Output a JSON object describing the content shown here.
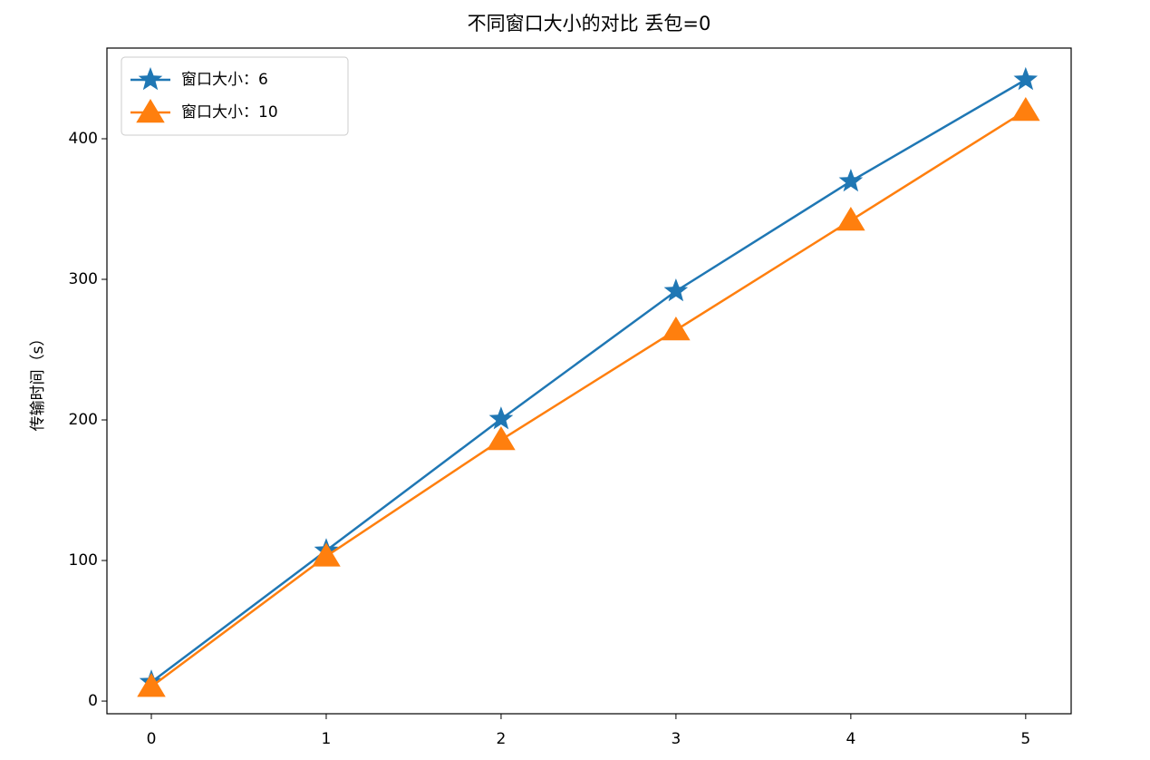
{
  "chart_data": {
    "type": "line",
    "title": "不同窗口大小的对比   丢包=0",
    "ylabel": "传输时间（s）",
    "x": [
      0,
      1,
      2,
      3,
      4,
      5
    ],
    "series": [
      {
        "name": "窗口大小：6",
        "color": "#1f77b4",
        "marker": "star",
        "values": [
          13.5,
          107,
          200.6,
          291.6,
          369.7,
          442
        ]
      },
      {
        "name": "窗口大小：10",
        "color": "#ff7f0e",
        "marker": "triangle",
        "values": [
          10.3,
          103,
          185.8,
          263.9,
          341.9,
          420
        ]
      }
    ],
    "xlim": [
      -0.254,
      5.26
    ],
    "ylim": [
      -9,
      464.5
    ],
    "xticks": [
      0,
      1,
      2,
      3,
      4,
      5
    ],
    "yticks": [
      0,
      100,
      200,
      300,
      400
    ],
    "legend": "upper left"
  }
}
